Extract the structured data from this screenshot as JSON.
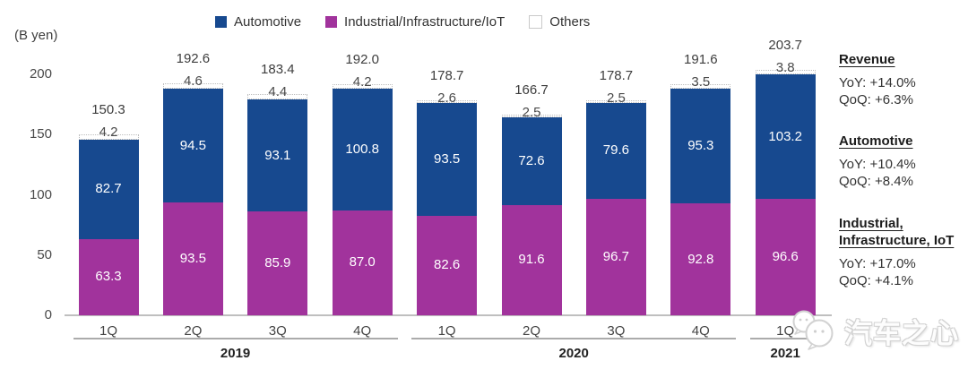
{
  "legend": {
    "items": [
      {
        "label": "Automotive",
        "color": "#17498f",
        "border": ""
      },
      {
        "label": "Industrial/Infrastructure/IoT",
        "color": "#a1339c",
        "border": ""
      },
      {
        "label": "Others",
        "color": "#ffffff",
        "border": "#c9c9c9"
      }
    ]
  },
  "chart_data": {
    "type": "bar",
    "stacked": true,
    "unit_label": "(B yen)",
    "categories": [
      "1Q",
      "2Q",
      "3Q",
      "4Q",
      "1Q",
      "2Q",
      "3Q",
      "4Q",
      "1Q"
    ],
    "year_groups": [
      {
        "label": "2019",
        "from": 0,
        "to": 3
      },
      {
        "label": "2020",
        "from": 4,
        "to": 7
      },
      {
        "label": "2021",
        "from": 8,
        "to": 8
      }
    ],
    "series": [
      {
        "name": "Industrial/Infrastructure/IoT",
        "color": "#a1339c",
        "values": [
          63.3,
          93.5,
          85.9,
          87.0,
          82.6,
          91.6,
          96.7,
          92.8,
          96.6
        ]
      },
      {
        "name": "Automotive",
        "color": "#17498f",
        "values": [
          82.7,
          94.5,
          93.1,
          100.8,
          93.5,
          72.6,
          79.6,
          95.3,
          103.2
        ]
      },
      {
        "name": "Others",
        "color": "#ffffff",
        "values": [
          4.2,
          4.6,
          4.4,
          4.2,
          2.6,
          2.5,
          2.5,
          3.5,
          3.8
        ]
      }
    ],
    "totals": [
      150.3,
      192.6,
      183.4,
      192.0,
      178.7,
      166.7,
      178.7,
      191.6,
      203.7
    ],
    "yticks": [
      0,
      50,
      100,
      150,
      200
    ],
    "ylim": [
      0,
      200
    ],
    "grid": false,
    "legend_position": "top"
  },
  "annotations": [
    {
      "heading_lines": [
        "Revenue"
      ],
      "lines": [
        "YoY: +14.0%",
        "QoQ: +6.3%"
      ]
    },
    {
      "heading_lines": [
        "Automotive"
      ],
      "lines": [
        "YoY: +10.4%",
        "QoQ: +8.4%"
      ]
    },
    {
      "heading_lines": [
        "Industrial,",
        "Infrastructure, IoT"
      ],
      "lines": [
        "YoY: +17.0%",
        "QoQ: +4.1%"
      ]
    }
  ],
  "watermark": {
    "text": "汽车之心"
  }
}
